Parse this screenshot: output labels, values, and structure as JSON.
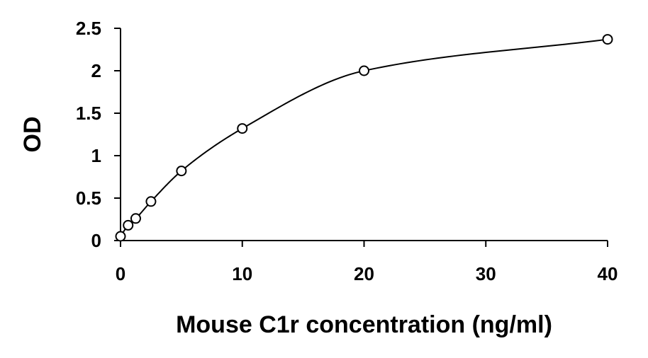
{
  "chart_data": {
    "type": "scatter",
    "title": "",
    "xlabel": "Mouse C1r concentration (ng/ml)",
    "ylabel": "OD",
    "xlim": [
      0,
      40
    ],
    "ylim": [
      0,
      2.5
    ],
    "x_scale": "linear",
    "y_scale": "linear",
    "grid": false,
    "legend": "none",
    "x_ticks": [
      {
        "value": 0,
        "label": "0"
      },
      {
        "value": 10,
        "label": "10"
      },
      {
        "value": 20,
        "label": "20"
      },
      {
        "value": 30,
        "label": "30"
      },
      {
        "value": 40,
        "label": "40"
      }
    ],
    "y_ticks": [
      {
        "value": 0,
        "label": "0"
      },
      {
        "value": 0.5,
        "label": "0.5"
      },
      {
        "value": 1,
        "label": "1"
      },
      {
        "value": 1.5,
        "label": "1.5"
      },
      {
        "value": 2,
        "label": "2"
      },
      {
        "value": 2.5,
        "label": "2.5"
      }
    ],
    "series": [
      {
        "marker": "open-circle",
        "line": "smooth-fit",
        "color": "#000000",
        "x": [
          0,
          0.625,
          1.25,
          2.5,
          5,
          10,
          20,
          40
        ],
        "y": [
          0.05,
          0.18,
          0.26,
          0.46,
          0.82,
          1.32,
          2.0,
          2.37
        ]
      }
    ]
  }
}
